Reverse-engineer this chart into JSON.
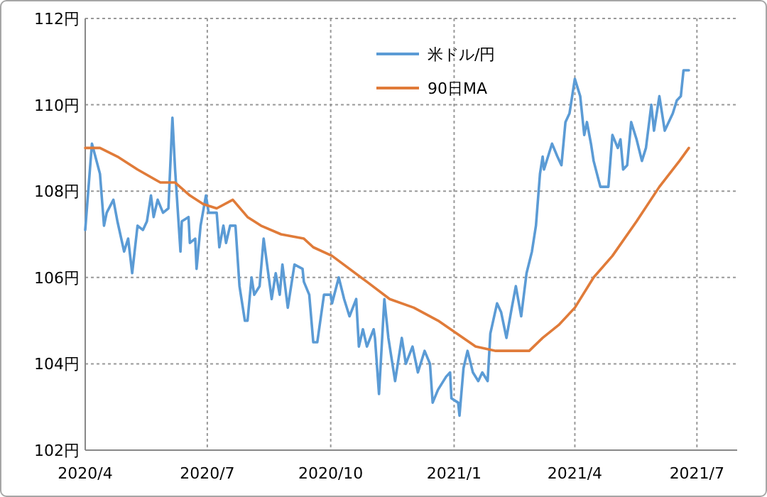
{
  "chart_data": {
    "type": "line",
    "xlim": [
      "2020-04-01",
      "2021-07-31"
    ],
    "ylim": [
      102,
      112
    ],
    "xticks": [
      {
        "value": "2020-04-01",
        "label": "2020/4"
      },
      {
        "value": "2020-07-01",
        "label": "2020/7"
      },
      {
        "value": "2020-10-01",
        "label": "2020/10"
      },
      {
        "value": "2021-01-01",
        "label": "2021/1"
      },
      {
        "value": "2021-04-01",
        "label": "2021/4"
      },
      {
        "value": "2021-07-01",
        "label": "2021/7"
      }
    ],
    "yticks": [
      {
        "value": 102,
        "label": "102円"
      },
      {
        "value": 104,
        "label": "104円"
      },
      {
        "value": 106,
        "label": "106円"
      },
      {
        "value": 108,
        "label": "108円"
      },
      {
        "value": 110,
        "label": "110円"
      },
      {
        "value": 112,
        "label": "112円"
      }
    ],
    "grid": true,
    "legend": "top",
    "series": [
      {
        "name": "米ドル/円",
        "color": "#5b9bd5",
        "x": [
          "2020-04-01",
          "2020-04-06",
          "2020-04-12",
          "2020-04-15",
          "2020-04-17",
          "2020-04-22",
          "2020-04-25",
          "2020-04-30",
          "2020-05-03",
          "2020-05-06",
          "2020-05-10",
          "2020-05-14",
          "2020-05-17",
          "2020-05-20",
          "2020-05-22",
          "2020-05-25",
          "2020-05-29",
          "2020-06-02",
          "2020-06-05",
          "2020-06-07",
          "2020-06-11",
          "2020-06-12",
          "2020-06-17",
          "2020-06-18",
          "2020-06-22",
          "2020-06-23",
          "2020-06-26",
          "2020-06-30",
          "2020-07-02",
          "2020-07-08",
          "2020-07-10",
          "2020-07-13",
          "2020-07-15",
          "2020-07-18",
          "2020-07-22",
          "2020-07-25",
          "2020-07-29",
          "2020-07-31",
          "2020-08-03",
          "2020-08-05",
          "2020-08-09",
          "2020-08-12",
          "2020-08-15",
          "2020-08-18",
          "2020-08-21",
          "2020-08-24",
          "2020-08-26",
          "2020-08-30",
          "2020-09-04",
          "2020-09-10",
          "2020-09-11",
          "2020-09-15",
          "2020-09-18",
          "2020-09-21",
          "2020-09-26",
          "2020-10-01",
          "2020-10-02",
          "2020-10-07",
          "2020-10-11",
          "2020-10-15",
          "2020-10-20",
          "2020-10-22",
          "2020-10-25",
          "2020-10-28",
          "2020-11-02",
          "2020-11-03",
          "2020-11-06",
          "2020-11-10",
          "2020-11-13",
          "2020-11-18",
          "2020-11-23",
          "2020-11-26",
          "2020-12-01",
          "2020-12-05",
          "2020-12-10",
          "2020-12-14",
          "2020-12-16",
          "2020-12-20",
          "2020-12-26",
          "2020-12-29",
          "2020-12-30",
          "2021-01-04",
          "2021-01-05",
          "2021-01-08",
          "2021-01-11",
          "2021-01-15",
          "2021-01-19",
          "2021-01-22",
          "2021-01-26",
          "2021-01-28",
          "2021-02-02",
          "2021-02-05",
          "2021-02-09",
          "2021-02-13",
          "2021-02-16",
          "2021-02-20",
          "2021-02-24",
          "2021-02-28",
          "2021-03-03",
          "2021-03-06",
          "2021-03-08",
          "2021-03-09",
          "2021-03-15",
          "2021-03-19",
          "2021-03-22",
          "2021-03-25",
          "2021-03-28",
          "2021-04-01",
          "2021-04-05",
          "2021-04-08",
          "2021-04-10",
          "2021-04-13",
          "2021-04-15",
          "2021-04-20",
          "2021-04-24",
          "2021-04-26",
          "2021-04-29",
          "2021-05-03",
          "2021-05-05",
          "2021-05-07",
          "2021-05-10",
          "2021-05-13",
          "2021-05-17",
          "2021-05-21",
          "2021-05-24",
          "2021-05-28",
          "2021-05-30",
          "2021-06-03",
          "2021-06-07",
          "2021-06-13",
          "2021-06-16",
          "2021-06-19",
          "2021-06-21",
          "2021-06-25"
        ],
        "values": [
          107.1,
          109.1,
          108.4,
          107.2,
          107.5,
          107.8,
          107.3,
          106.6,
          106.9,
          106.1,
          107.2,
          107.1,
          107.3,
          107.9,
          107.4,
          107.8,
          107.5,
          107.6,
          109.7,
          108.5,
          106.6,
          107.3,
          107.4,
          106.8,
          106.9,
          106.2,
          107.2,
          107.9,
          107.5,
          107.5,
          106.7,
          107.2,
          106.8,
          107.2,
          107.2,
          105.8,
          105.0,
          105.0,
          106.0,
          105.6,
          105.8,
          106.9,
          106.2,
          105.5,
          106.1,
          105.6,
          106.3,
          105.3,
          106.3,
          106.2,
          105.9,
          105.6,
          104.5,
          104.5,
          105.6,
          105.6,
          105.4,
          106.0,
          105.5,
          105.1,
          105.5,
          104.4,
          104.8,
          104.4,
          104.8,
          104.6,
          103.3,
          105.5,
          104.6,
          103.6,
          104.6,
          104.0,
          104.4,
          103.8,
          104.3,
          104.0,
          103.1,
          103.4,
          103.7,
          103.8,
          103.2,
          103.1,
          102.8,
          103.9,
          104.3,
          103.8,
          103.6,
          103.8,
          103.6,
          104.7,
          105.4,
          105.2,
          104.6,
          105.3,
          105.8,
          105.1,
          106.1,
          106.6,
          107.2,
          108.4,
          108.8,
          108.5,
          109.1,
          108.8,
          108.6,
          109.6,
          109.8,
          110.6,
          110.2,
          109.3,
          109.6,
          109.1,
          108.7,
          108.1,
          108.1,
          108.1,
          109.3,
          109.0,
          109.2,
          108.5,
          108.6,
          109.6,
          109.2,
          108.7,
          109.0,
          110.0,
          109.4,
          110.2,
          109.4,
          109.8,
          110.1,
          110.2,
          110.8,
          110.8
        ]
      },
      {
        "name": "90日MA",
        "color": "#e07b39",
        "x": [
          "2020-04-01",
          "2020-04-12",
          "2020-04-25",
          "2020-05-10",
          "2020-05-27",
          "2020-06-07",
          "2020-06-18",
          "2020-06-28",
          "2020-07-08",
          "2020-07-20",
          "2020-07-31",
          "2020-08-10",
          "2020-08-25",
          "2020-09-11",
          "2020-09-18",
          "2020-10-02",
          "2020-10-28",
          "2020-11-14",
          "2020-12-02",
          "2020-12-20",
          "2021-01-03",
          "2021-01-17",
          "2021-02-01",
          "2021-02-13",
          "2021-02-26",
          "2021-03-08",
          "2021-03-20",
          "2021-04-01",
          "2021-04-15",
          "2021-04-29",
          "2021-05-17",
          "2021-06-03",
          "2021-06-18",
          "2021-06-25"
        ],
        "values": [
          109.0,
          109.0,
          108.8,
          108.5,
          108.2,
          108.2,
          107.9,
          107.7,
          107.6,
          107.8,
          107.4,
          107.2,
          107.0,
          106.9,
          106.7,
          106.5,
          105.9,
          105.5,
          105.3,
          105.0,
          104.7,
          104.4,
          104.3,
          104.3,
          104.3,
          104.6,
          104.9,
          105.3,
          106.0,
          106.5,
          107.3,
          108.1,
          108.7,
          109.0
        ]
      }
    ]
  }
}
